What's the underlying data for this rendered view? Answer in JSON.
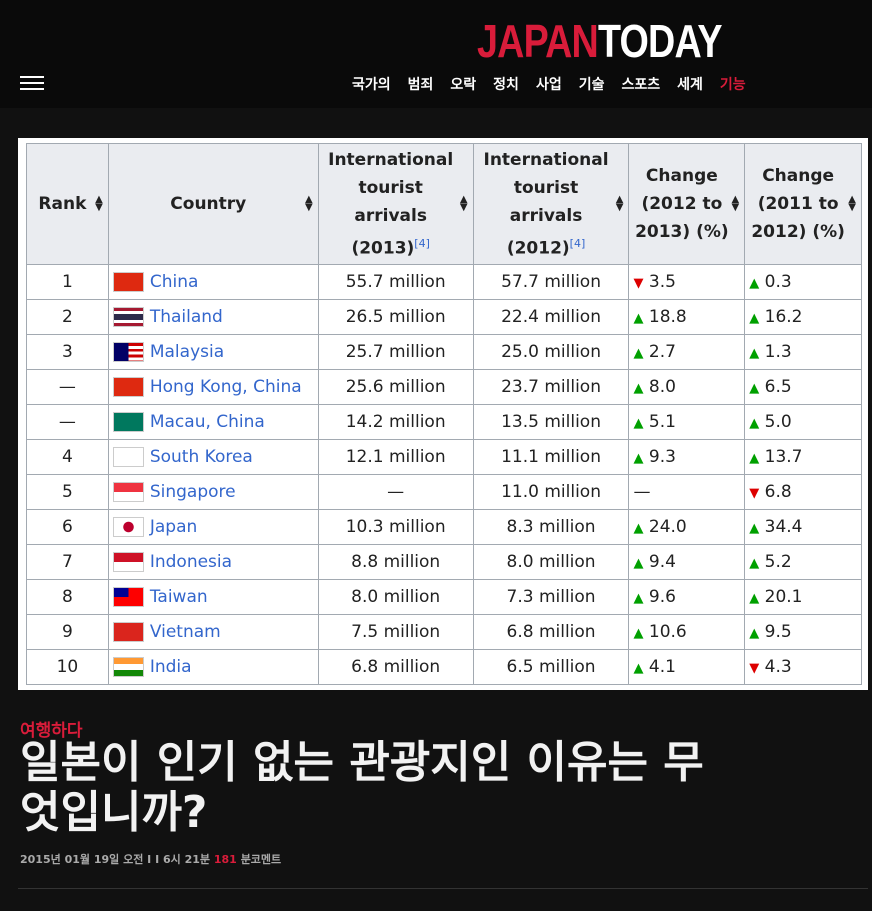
{
  "header": {
    "logo_part1": "JAPAN",
    "logo_part2": "TODAY",
    "nav": [
      "국가의",
      "범죄",
      "오락",
      "정치",
      "사업",
      "기술",
      "스포츠",
      "세계"
    ],
    "nav_highlight": "기능",
    "accent": "#d91c3a"
  },
  "table": {
    "headers": {
      "rank": "Rank",
      "country": "Country",
      "arr2013": "International tourist arrivals (2013)",
      "arr2012": "International tourist arrivals (2012)",
      "ref": "[4]",
      "ch1312": "Change (2012 to 2013) (%)",
      "ch1211": "Change (2011 to 2012) (%)"
    },
    "rows": [
      {
        "rank": "1",
        "country": "China",
        "flag": "china",
        "a13": "55.7 million",
        "a12": "57.7 million",
        "c1": "3.5",
        "d1": "down",
        "c2": "0.3",
        "d2": "up"
      },
      {
        "rank": "2",
        "country": "Thailand",
        "flag": "thailand",
        "a13": "26.5 million",
        "a12": "22.4 million",
        "c1": "18.8",
        "d1": "up",
        "c2": "16.2",
        "d2": "up"
      },
      {
        "rank": "3",
        "country": "Malaysia",
        "flag": "malaysia",
        "a13": "25.7 million",
        "a12": "25.0 million",
        "c1": "2.7",
        "d1": "up",
        "c2": "1.3",
        "d2": "up"
      },
      {
        "rank": "—",
        "country": "Hong Kong, China",
        "flag": "hongkong",
        "a13": "25.6 million",
        "a12": "23.7 million",
        "c1": "8.0",
        "d1": "up",
        "c2": "6.5",
        "d2": "up"
      },
      {
        "rank": "—",
        "country": "Macau, China",
        "flag": "macau",
        "a13": "14.2 million",
        "a12": "13.5 million",
        "c1": "5.1",
        "d1": "up",
        "c2": "5.0",
        "d2": "up"
      },
      {
        "rank": "4",
        "country": "South Korea",
        "flag": "korea",
        "a13": "12.1 million",
        "a12": "11.1 million",
        "c1": "9.3",
        "d1": "up",
        "c2": "13.7",
        "d2": "up"
      },
      {
        "rank": "5",
        "country": "Singapore",
        "flag": "singapore",
        "a13": "—",
        "a12": "11.0 million",
        "c1": "—",
        "d1": "none",
        "c2": "6.8",
        "d2": "down"
      },
      {
        "rank": "6",
        "country": "Japan",
        "flag": "japan",
        "a13": "10.3 million",
        "a12": "8.3 million",
        "c1": "24.0",
        "d1": "up",
        "c2": "34.4",
        "d2": "up"
      },
      {
        "rank": "7",
        "country": "Indonesia",
        "flag": "indonesia",
        "a13": "8.8 million",
        "a12": "8.0 million",
        "c1": "9.4",
        "d1": "up",
        "c2": "5.2",
        "d2": "up"
      },
      {
        "rank": "8",
        "country": "Taiwan",
        "flag": "taiwan",
        "a13": "8.0 million",
        "a12": "7.3 million",
        "c1": "9.6",
        "d1": "up",
        "c2": "20.1",
        "d2": "up"
      },
      {
        "rank": "9",
        "country": "Vietnam",
        "flag": "vietnam",
        "a13": "7.5 million",
        "a12": "6.8 million",
        "c1": "10.6",
        "d1": "up",
        "c2": "9.5",
        "d2": "up"
      },
      {
        "rank": "10",
        "country": "India",
        "flag": "india",
        "a13": "6.8 million",
        "a12": "6.5 million",
        "c1": "4.1",
        "d1": "up",
        "c2": "4.3",
        "d2": "down"
      }
    ]
  },
  "article": {
    "category": "여행하다",
    "title": "일본이 인기 없는 관광지인 이유는 무엇입니까?",
    "meta_date": "2015년 01월 19일 오전 I I 6시 21분",
    "meta_count": "181",
    "meta_suffix": "분코멘트"
  }
}
